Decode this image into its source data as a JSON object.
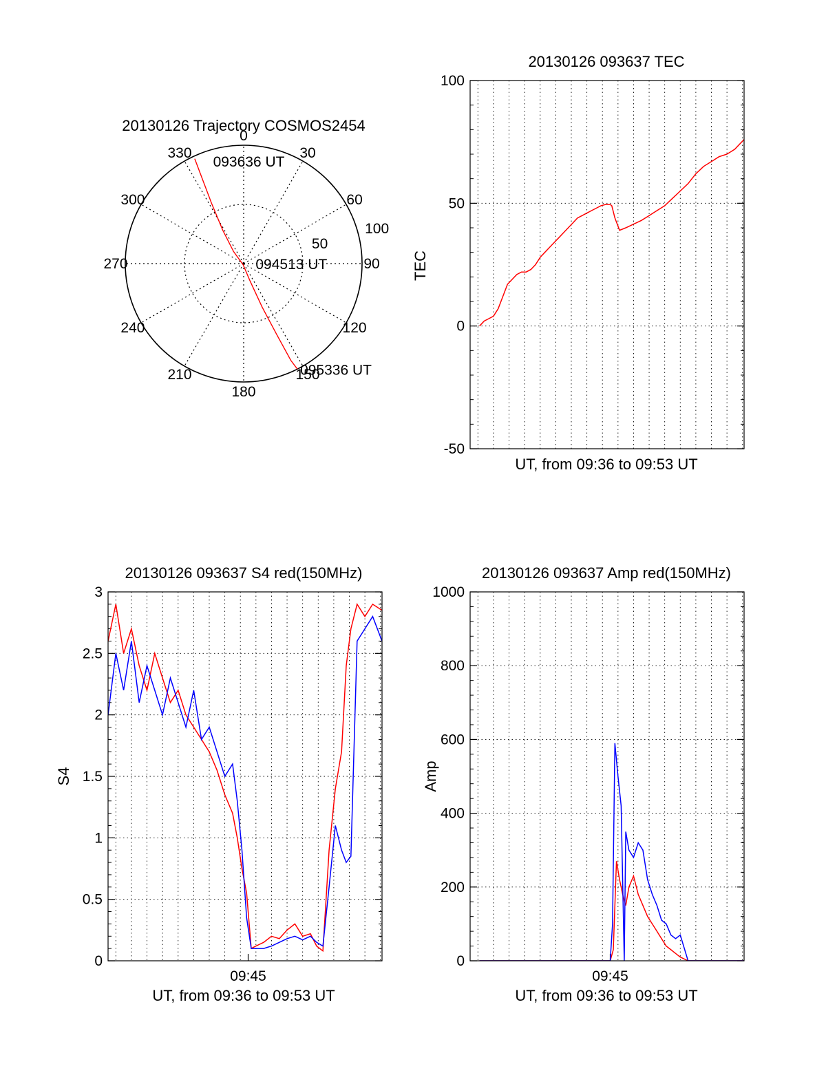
{
  "colors": {
    "red": "#ff0000",
    "blue": "#0000ff",
    "axis": "#000000",
    "grid": "#000000"
  },
  "chart_data": [
    {
      "id": "trajectory",
      "type": "polar",
      "title": "20130126 Trajectory COSMOS2454",
      "azimuth_labels": [
        "0",
        "30",
        "60",
        "90",
        "120",
        "150",
        "180",
        "210",
        "240",
        "270",
        "300",
        "330"
      ],
      "azimuths": [
        0,
        30,
        60,
        90,
        120,
        150,
        180,
        210,
        240,
        270,
        300,
        330
      ],
      "radial_ticks": [
        50,
        100
      ],
      "radial_tick_labels": [
        "50",
        "100"
      ],
      "rmax": 100,
      "grid": true,
      "track": [
        {
          "az": 335,
          "zenith": 88
        },
        {
          "az": 334,
          "zenith": 72
        },
        {
          "az": 332,
          "zenith": 52
        },
        {
          "az": 328,
          "zenith": 30
        },
        {
          "az": 320,
          "zenith": 12
        },
        {
          "az": 200,
          "zenith": 1
        },
        {
          "az": 160,
          "zenith": 14
        },
        {
          "az": 157,
          "zenith": 36
        },
        {
          "az": 155,
          "zenith": 60
        },
        {
          "az": 154,
          "zenith": 82
        },
        {
          "az": 153,
          "zenith": 90
        }
      ],
      "annotations": [
        {
          "text": "093636 UT",
          "az": 342,
          "zenith": 82
        },
        {
          "text": "094513 UT",
          "az": 90,
          "zenith": 7
        },
        {
          "text": "095336 UT",
          "az": 153,
          "zenith": 90
        }
      ]
    },
    {
      "id": "tec",
      "type": "line",
      "title": "20130126 093637 TEC",
      "xlabel": "UT, from 09:36 to 09:53 UT",
      "ylabel": "TEC",
      "xlim": [
        0,
        17.6
      ],
      "ylim": [
        -50,
        100
      ],
      "yticks": [
        -50,
        0,
        50,
        100
      ],
      "ytick_labels": [
        "-50",
        "0",
        "50",
        "100"
      ],
      "xticks": [],
      "xtick_labels": [],
      "grid": true,
      "series": [
        {
          "color": "#ff0000",
          "x": [
            0.6,
            0.9,
            1.2,
            1.5,
            1.8,
            2.1,
            2.4,
            2.7,
            3.0,
            3.3,
            3.6,
            3.9,
            4.2,
            4.5,
            4.8,
            5.1,
            5.4,
            5.7,
            6.0,
            6.3,
            6.6,
            6.9,
            7.2,
            7.5,
            7.8,
            8.1,
            8.4,
            8.7,
            9.0,
            9.1,
            9.3,
            9.6,
            10.0,
            10.5,
            11.0,
            11.5,
            12.0,
            12.5,
            13.0,
            13.5,
            14.0,
            14.5,
            15.0,
            15.5,
            16.0,
            16.5,
            17.0,
            17.6
          ],
          "values": [
            0,
            2,
            3,
            4,
            7,
            12,
            17,
            19,
            21,
            22,
            22,
            23,
            25,
            28,
            30,
            32,
            34,
            36,
            38,
            40,
            42,
            44,
            45,
            46,
            47,
            48,
            49,
            49.5,
            49.5,
            49,
            44,
            39,
            40,
            41.5,
            43,
            45,
            47,
            49,
            52,
            55,
            58,
            62,
            65,
            67,
            69,
            70,
            72,
            76
          ]
        }
      ]
    },
    {
      "id": "s4",
      "type": "line",
      "title": "20130126 093637 S4 red(150MHz)",
      "xlabel": "UT, from 09:36 to 09:53 UT",
      "ylabel": "S4",
      "xlim": [
        0,
        17.6
      ],
      "ylim": [
        0,
        3
      ],
      "yticks": [
        0,
        0.5,
        1,
        1.5,
        2,
        2.5,
        3
      ],
      "ytick_labels": [
        "0",
        "0.5",
        "1",
        "1.5",
        "2",
        "2.5",
        "3"
      ],
      "xticks": [
        9
      ],
      "xtick_labels": [
        "09:45"
      ],
      "grid": true,
      "series": [
        {
          "color": "#ff0000",
          "x": [
            0,
            0.5,
            1,
            1.5,
            2,
            2.5,
            3,
            3.5,
            4,
            4.5,
            5,
            5.5,
            6,
            6.5,
            7,
            7.5,
            8,
            8.3,
            8.6,
            8.9,
            9.2,
            9.5,
            10,
            10.5,
            11,
            11.5,
            12,
            12.5,
            13,
            13.4,
            13.8,
            14.2,
            14.6,
            15,
            15.3,
            15.6,
            16,
            16.5,
            17,
            17.6
          ],
          "values": [
            2.6,
            2.9,
            2.5,
            2.7,
            2.4,
            2.2,
            2.5,
            2.3,
            2.1,
            2.2,
            2.0,
            1.9,
            1.8,
            1.7,
            1.55,
            1.35,
            1.2,
            1.0,
            0.75,
            0.55,
            0.1,
            0.12,
            0.15,
            0.2,
            0.18,
            0.25,
            0.3,
            0.2,
            0.22,
            0.12,
            0.08,
            0.9,
            1.4,
            1.7,
            2.4,
            2.7,
            2.9,
            2.8,
            2.9,
            2.85
          ]
        },
        {
          "color": "#0000ff",
          "x": [
            0,
            0.5,
            1,
            1.5,
            2,
            2.5,
            3,
            3.5,
            4,
            4.5,
            5,
            5.5,
            6,
            6.5,
            7,
            7.5,
            8,
            8.3,
            8.6,
            8.9,
            9.2,
            9.5,
            10,
            10.5,
            11,
            11.5,
            12,
            12.5,
            13,
            13.4,
            13.8,
            14.2,
            14.6,
            15,
            15.3,
            15.6,
            16,
            16.5,
            17,
            17.6
          ],
          "values": [
            2.0,
            2.5,
            2.2,
            2.6,
            2.1,
            2.4,
            2.2,
            2.0,
            2.3,
            2.1,
            1.9,
            2.2,
            1.8,
            1.9,
            1.7,
            1.5,
            1.6,
            1.3,
            0.9,
            0.35,
            0.1,
            0.1,
            0.1,
            0.12,
            0.15,
            0.18,
            0.2,
            0.17,
            0.2,
            0.15,
            0.12,
            0.6,
            1.1,
            0.9,
            0.8,
            0.85,
            2.6,
            2.7,
            2.8,
            2.6
          ]
        }
      ]
    },
    {
      "id": "amp",
      "type": "line",
      "title": "20130126 093637 Amp red(150MHz)",
      "xlabel": "UT, from 09:36 to 09:53 UT",
      "ylabel": "Amp",
      "xlim": [
        0,
        17.6
      ],
      "ylim": [
        0,
        1000
      ],
      "yticks": [
        0,
        200,
        400,
        600,
        800,
        1000
      ],
      "ytick_labels": [
        "0",
        "200",
        "400",
        "600",
        "800",
        "1000"
      ],
      "xticks": [
        9
      ],
      "xtick_labels": [
        "09:45"
      ],
      "grid": true,
      "series": [
        {
          "color": "#ff0000",
          "x": [
            0.6,
            4,
            8,
            9,
            9.2,
            9.4,
            9.6,
            9.8,
            10.0,
            10.2,
            10.5,
            10.8,
            11.1,
            11.4,
            11.7,
            12.0,
            12.3,
            12.6,
            12.9,
            13.2,
            13.5,
            14,
            17.6
          ],
          "values": [
            0,
            0,
            0,
            0,
            30,
            270,
            220,
            180,
            150,
            200,
            230,
            180,
            150,
            120,
            100,
            80,
            60,
            40,
            30,
            20,
            10,
            0,
            0
          ]
        },
        {
          "color": "#0000ff",
          "x": [
            0.6,
            4,
            8,
            9,
            9.15,
            9.3,
            9.5,
            9.7,
            9.9,
            10.0,
            10.2,
            10.5,
            10.8,
            11.1,
            11.4,
            11.7,
            12.0,
            12.3,
            12.6,
            12.9,
            13.2,
            13.5,
            14,
            17.6
          ],
          "values": [
            0,
            0,
            0,
            0,
            100,
            590,
            500,
            420,
            0,
            350,
            300,
            280,
            320,
            300,
            220,
            180,
            150,
            110,
            100,
            70,
            60,
            70,
            0,
            0
          ]
        }
      ]
    }
  ]
}
